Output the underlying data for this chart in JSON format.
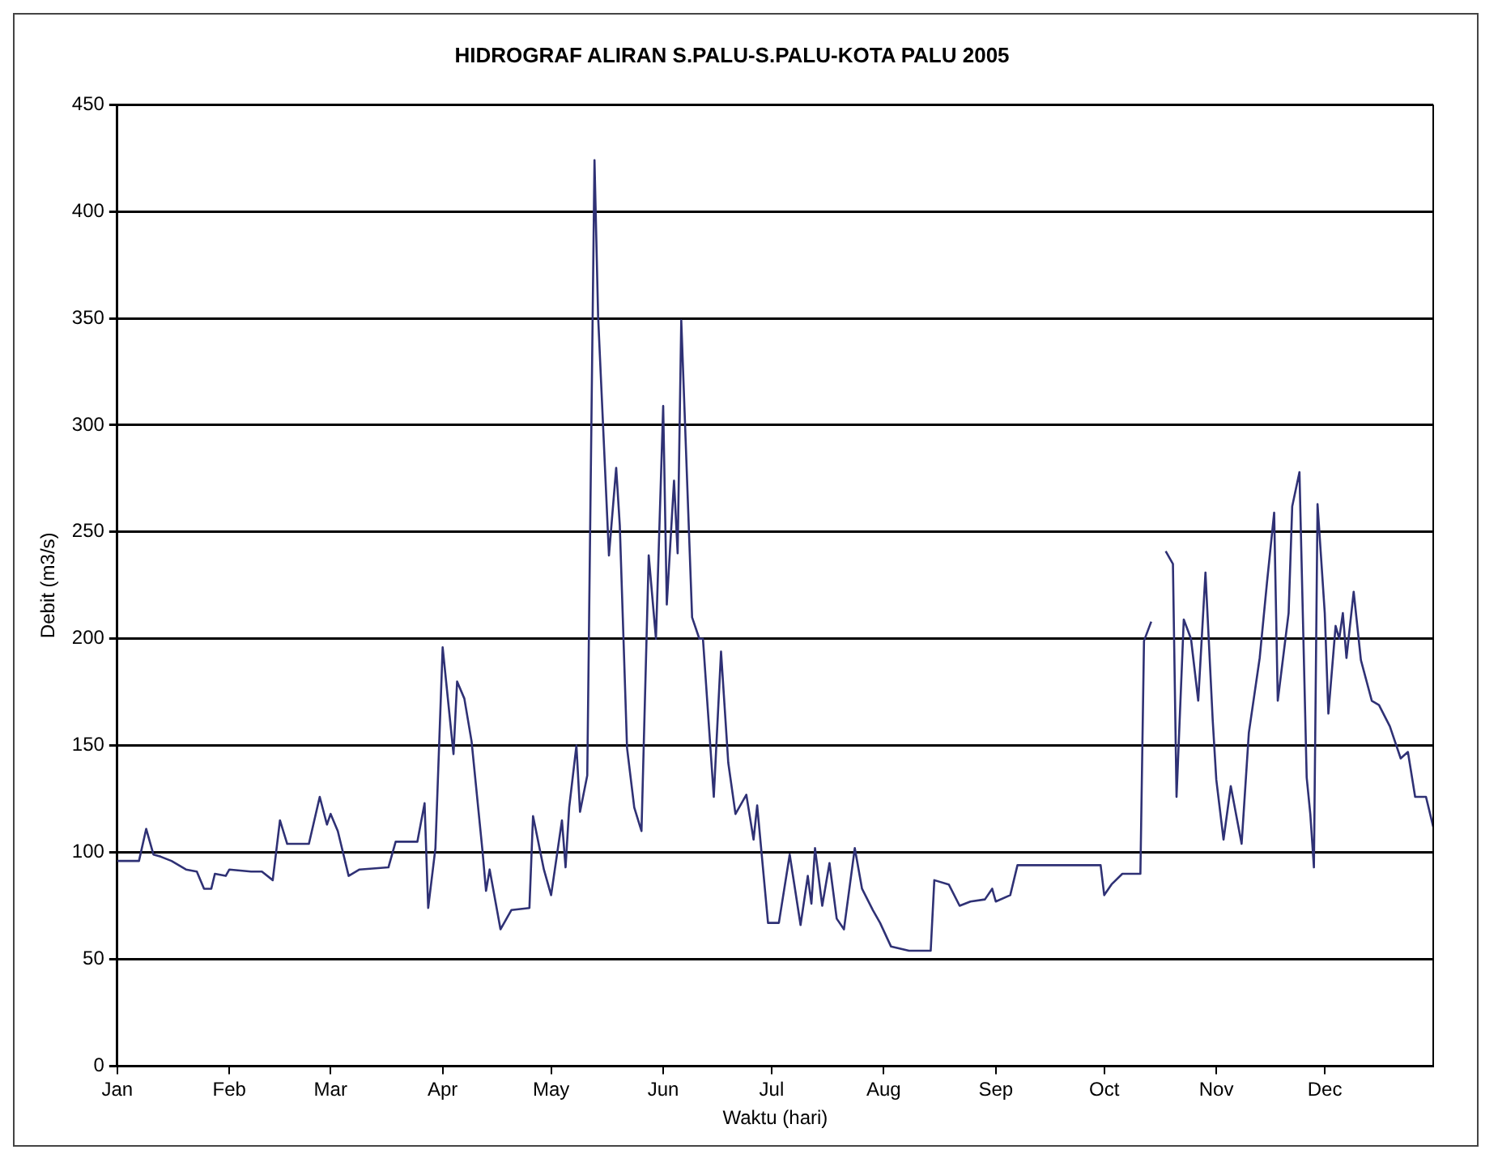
{
  "chart_data": {
    "type": "line",
    "title": "HIDROGRAF ALIRAN S.PALU-S.PALU-KOTA PALU 2005",
    "xlabel": "Waktu (hari)",
    "ylabel": "Debit (m3/s)",
    "x": [
      "--01-01",
      "--01-07",
      "--01-09",
      "--01-11",
      "--01-13",
      "--01-16",
      "--01-20",
      "--01-23",
      "--01-25",
      "--01-27",
      "--01-28",
      "--01-31",
      "--02-01",
      "--02-07",
      "--02-10",
      "--02-13",
      "--02-15",
      "--02-17",
      "--02-23",
      "--02-26",
      "--02-28",
      "--03-01",
      "--03-03",
      "--03-06",
      "--03-09",
      "--03-17",
      "--03-19",
      "--03-25",
      "--03-27",
      "--03-28",
      "--03-30",
      "--04-01",
      "--04-04",
      "--04-05",
      "--04-07",
      "--04-09",
      "--04-12",
      "--04-13",
      "--04-14",
      "--04-17",
      "--04-20",
      "--04-25",
      "--04-26",
      "--04-29",
      "--05-01",
      "--05-04",
      "--05-05",
      "--05-06",
      "--05-08",
      "--05-09",
      "--05-11",
      "--05-13",
      "--05-14",
      "--05-17",
      "--05-19",
      "--05-20",
      "--05-22",
      "--05-24",
      "--05-26",
      "--05-28",
      "--05-30",
      "--06-01",
      "--06-02",
      "--06-04",
      "--06-05",
      "--06-06",
      "--06-09",
      "--06-11",
      "--06-12",
      "--06-15",
      "--06-17",
      "--06-19",
      "--06-21",
      "--06-24",
      "--06-26",
      "--06-27",
      "--06-30",
      "--07-03",
      "--07-06",
      "--07-09",
      "--07-11",
      "--07-12",
      "--07-13",
      "--07-15",
      "--07-17",
      "--07-19",
      "--07-21",
      "--07-24",
      "--07-26",
      "--07-29",
      "--07-31",
      "--08-03",
      "--08-08",
      "--08-14",
      "--08-15",
      "--08-19",
      "--08-22",
      "--08-25",
      "--08-29",
      "--08-31",
      "--09-01",
      "--09-05",
      "--09-07",
      "--09-16",
      "--09-20",
      "--09-30",
      "--10-01",
      "--10-03",
      "--10-06",
      "--10-11",
      "--10-12",
      "--10-14",
      "--10-15",
      "--10-18",
      "--10-20",
      "--10-21",
      "--10-23",
      "--10-25",
      "--10-27",
      "--10-29",
      "--10-31",
      "--11-01",
      "--11-03",
      "--11-05",
      "--11-08",
      "--11-10",
      "--11-13",
      "--11-15",
      "--11-17",
      "--11-18",
      "--11-21",
      "--11-22",
      "--11-24",
      "--11-26",
      "--11-27",
      "--11-28",
      "--11-29",
      "--12-01",
      "--12-02",
      "--12-04",
      "--12-05",
      "--12-06",
      "--12-07",
      "--12-09",
      "--12-11",
      "--12-14",
      "--12-16",
      "--12-19",
      "--12-22",
      "--12-24",
      "--12-26",
      "--12-29",
      "--12-31"
    ],
    "series": [
      {
        "color": "#2f3175",
        "values": [
          96,
          96,
          111,
          99,
          98,
          96,
          92,
          91,
          83,
          83,
          90,
          89,
          92,
          91,
          91,
          87,
          115,
          104,
          104,
          126,
          113,
          118,
          110,
          89,
          92,
          93,
          105,
          105,
          123,
          74,
          102,
          196,
          146,
          180,
          172,
          152,
          101,
          82,
          92,
          64,
          73,
          74,
          117,
          92,
          80,
          115,
          93,
          121,
          150,
          119,
          136,
          424,
          351,
          239,
          280,
          253,
          149,
          121,
          110,
          239,
          200,
          309,
          216,
          274,
          240,
          349,
          210,
          200,
          200,
          126,
          194,
          142,
          118,
          127,
          106,
          122,
          67,
          67,
          99,
          66,
          89,
          76,
          102,
          75,
          95,
          69,
          64,
          102,
          83,
          73,
          67,
          56,
          54,
          54,
          87,
          85,
          75,
          77,
          78,
          83,
          77,
          80,
          94,
          94,
          94,
          94,
          80,
          85,
          90,
          90,
          199,
          208,
          null,
          241,
          235,
          126,
          209,
          200,
          171,
          231,
          162,
          134,
          106,
          131,
          104,
          156,
          191,
          226,
          259,
          171,
          212,
          262,
          278,
          135,
          118,
          93,
          263,
          212,
          165,
          206,
          200,
          212,
          191,
          222,
          190,
          171,
          169,
          159,
          144,
          147,
          126,
          126,
          112
        ]
      }
    ],
    "ylim": [
      0,
      450
    ],
    "yticks": [
      0,
      50,
      100,
      150,
      200,
      250,
      300,
      350,
      400,
      450
    ],
    "xlim": [
      "--01-01",
      "--12-31"
    ],
    "xticks": [
      {
        "value": "--01-01",
        "label": "Jan"
      },
      {
        "value": "--02-01",
        "label": "Feb"
      },
      {
        "value": "--03-01",
        "label": "Mar"
      },
      {
        "value": "--04-01",
        "label": "Apr"
      },
      {
        "value": "--05-01",
        "label": "May"
      },
      {
        "value": "--06-01",
        "label": "Jun"
      },
      {
        "value": "--07-01",
        "label": "Jul"
      },
      {
        "value": "--08-01",
        "label": "Aug"
      },
      {
        "value": "--09-01",
        "label": "Sep"
      },
      {
        "value": "--10-01",
        "label": "Oct"
      },
      {
        "value": "--11-01",
        "label": "Nov"
      },
      {
        "value": "--12-01",
        "label": "Dec"
      }
    ],
    "grid": "y",
    "legend": false,
    "marker": "none",
    "line_style": "solid"
  }
}
